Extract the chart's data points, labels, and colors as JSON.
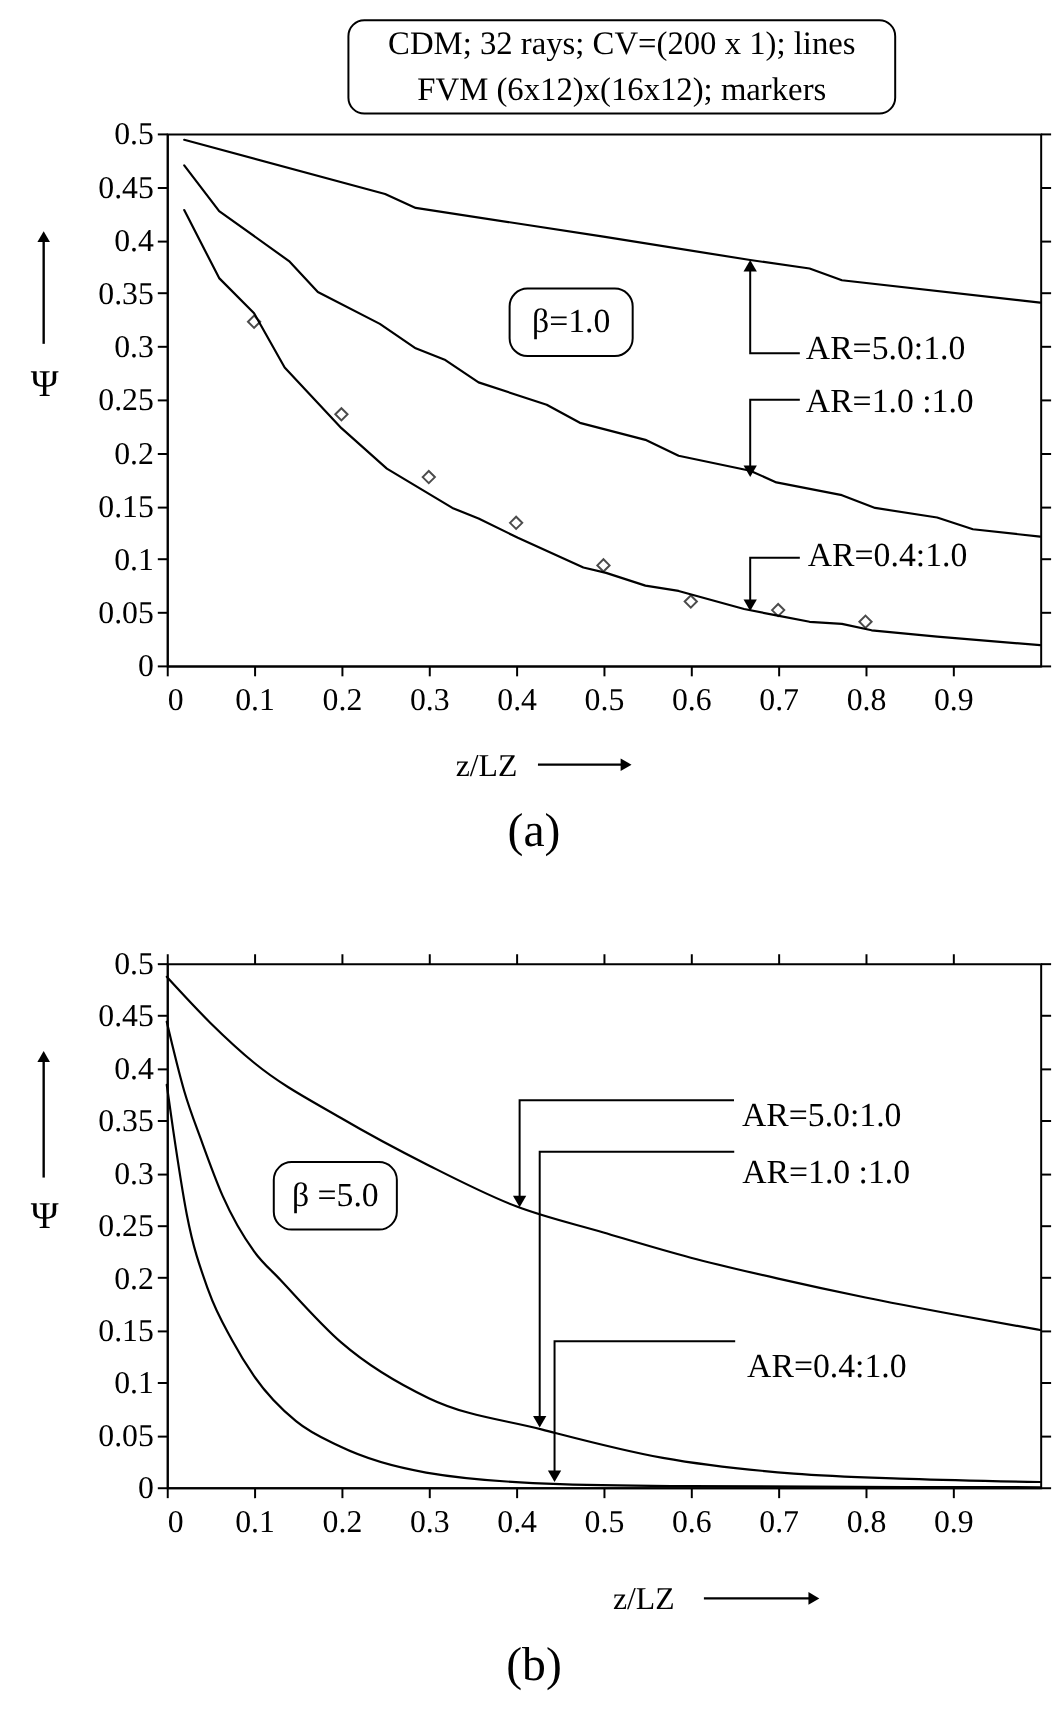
{
  "chart_data": [
    {
      "type": "line",
      "title": "(a)",
      "xlabel": "z/LZ",
      "ylabel": "Ψ",
      "xlim": [
        0,
        1
      ],
      "ylim": [
        0,
        0.5
      ],
      "xticks": [
        0,
        0.1,
        0.2,
        0.3,
        0.4,
        0.5,
        0.6,
        0.7,
        0.8,
        0.9
      ],
      "yticks": [
        0,
        0.05,
        0.1,
        0.15,
        0.2,
        0.25,
        0.3,
        0.35,
        0.4,
        0.45,
        0.5
      ],
      "series": [
        {
          "color": "#000000",
          "x": [
            0.02,
            0.25,
            0.285,
            0.5,
            0.668,
            0.736,
            0.773,
            1.0
          ],
          "values": [
            0.494,
            0.443,
            0.43,
            0.403,
            0.381,
            0.373,
            0.362,
            0.341
          ]
        },
        {
          "color": "#000000",
          "x": [
            0.02,
            0.06,
            0.14,
            0.173,
            0.244,
            0.285,
            0.319,
            0.357,
            0.435,
            0.473,
            0.548,
            0.586,
            0.668,
            0.698,
            0.773,
            0.811,
            0.882,
            0.923,
            1.0
          ],
          "values": [
            0.47,
            0.427,
            0.38,
            0.351,
            0.321,
            0.298,
            0.287,
            0.266,
            0.245,
            0.228,
            0.212,
            0.197,
            0.183,
            0.172,
            0.16,
            0.148,
            0.139,
            0.128,
            0.121
          ]
        },
        {
          "color": "#000000",
          "x": [
            0.02,
            0.06,
            0.1,
            0.135,
            0.2,
            0.252,
            0.327,
            0.357,
            0.402,
            0.477,
            0.503,
            0.548,
            0.586,
            0.661,
            0.698,
            0.736,
            0.773,
            0.807,
            0.882,
            1.0
          ],
          "values": [
            0.428,
            0.364,
            0.331,
            0.28,
            0.223,
            0.185,
            0.148,
            0.138,
            0.12,
            0.092,
            0.087,
            0.075,
            0.07,
            0.053,
            0.047,
            0.041,
            0.039,
            0.033,
            0.027,
            0.019
          ]
        },
        {
          "type": "scatter",
          "color": "#000000",
          "marker": "diamond",
          "x": [
            0.1,
            0.2,
            0.3,
            0.4,
            0.5,
            0.6,
            0.7,
            0.8
          ],
          "values": [
            0.323,
            0.236,
            0.177,
            0.134,
            0.094,
            0.06,
            0.052,
            0.041
          ]
        }
      ],
      "annotations": [
        "CDM; 32 rays; CV=(200 x 1); lines",
        "FVM (6x12)x(16x12); markers",
        "β=1.0",
        {
          "text": "AR=5.0:1.0",
          "x": 0.668,
          "y": 0.383
        },
        {
          "text": "AR=1.0 :1.0",
          "x": 0.668,
          "y": 0.175
        },
        {
          "text": "AR=0.4:1.0",
          "x": 0.668,
          "y": 0.049
        }
      ]
    },
    {
      "type": "line",
      "title": "(b)",
      "xlabel": "z/LZ",
      "ylabel": "Ψ",
      "xlim": [
        0,
        1
      ],
      "ylim": [
        0,
        0.5
      ],
      "xticks": [
        0,
        0.1,
        0.2,
        0.3,
        0.4,
        0.5,
        0.6,
        0.7,
        0.8,
        0.9
      ],
      "yticks": [
        0,
        0.05,
        0.1,
        0.15,
        0.2,
        0.25,
        0.3,
        0.35,
        0.4,
        0.45,
        0.5
      ],
      "series": [
        {
          "color": "#000000",
          "x": [
            0,
            0.05,
            0.1,
            0.2,
            0.3,
            0.4,
            0.5,
            0.6,
            0.7,
            0.8,
            0.9,
            1.0
          ],
          "values": [
            0.487,
            0.443,
            0.405,
            0.352,
            0.307,
            0.268,
            0.243,
            0.219,
            0.199,
            0.181,
            0.165,
            0.15
          ]
        },
        {
          "color": "#000000",
          "x": [
            0,
            0.02,
            0.04,
            0.064,
            0.1,
            0.13,
            0.2,
            0.3,
            0.43,
            0.568,
            0.718,
            0.85,
            1.0
          ],
          "values": [
            0.444,
            0.378,
            0.33,
            0.278,
            0.225,
            0.198,
            0.138,
            0.085,
            0.055,
            0.028,
            0.013,
            0.008,
            0.005
          ]
        },
        {
          "color": "#000000",
          "x": [
            0,
            0.0075,
            0.023,
            0.048,
            0.075,
            0.1,
            0.148,
            0.198,
            0.297,
            0.45,
            0.6,
            1.0
          ],
          "values": [
            0.384,
            0.34,
            0.26,
            0.187,
            0.14,
            0.106,
            0.063,
            0.039,
            0.014,
            0.003,
            0.001,
            0
          ]
        }
      ],
      "annotations": [
        "β =5.0",
        {
          "text": "AR=5.0:1.0",
          "x": 0.404,
          "y": 0.265
        },
        {
          "text": "AR=1.0 :1.0",
          "x": 0.427,
          "y": 0.055
        },
        {
          "text": "AR=0.4:1.0",
          "x": 0.444,
          "y": 0.003
        }
      ]
    }
  ]
}
